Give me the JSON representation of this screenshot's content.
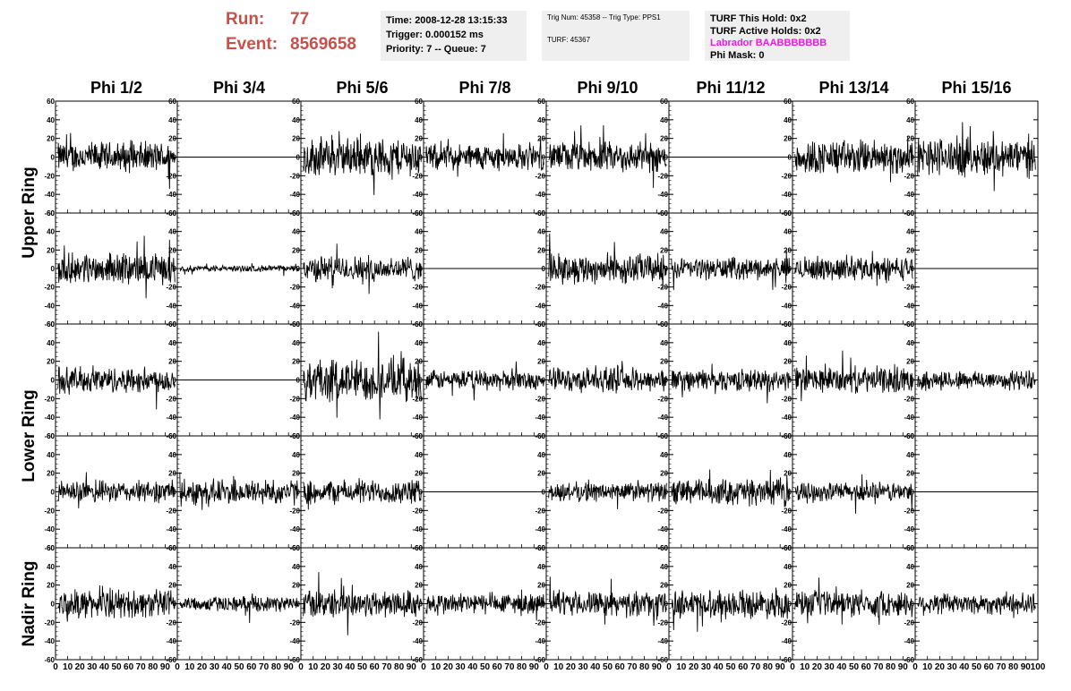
{
  "header": {
    "run_label": "Run:",
    "run_value": "77",
    "event_label": "Event:",
    "event_value": "8569658",
    "run_color": "#c8504a"
  },
  "info_box_1": {
    "time": "Time: 2008-12-28 13:15:33",
    "trigger": "Trigger: 0.000152 ms",
    "priority": "Priority: 7 -- Queue: 7"
  },
  "info_box_2": {
    "trig": "Trig Num: 45358 -- Trig Type: PPS1",
    "turf": "TURF: 45367"
  },
  "info_box_3": {
    "this_hold": "TURF This Hold: 0x2",
    "active_holds": "TURF Active Holds: 0x2",
    "labrador": "Labrador BAABBBBBBB",
    "labrador_color": "#e020e0",
    "phi_mask": "Phi Mask: 0"
  },
  "chart_data": {
    "type": "line",
    "columns": [
      "Phi 1/2",
      "Phi 3/4",
      "Phi 5/6",
      "Phi 7/8",
      "Phi 9/10",
      "Phi 11/12",
      "Phi 13/14",
      "Phi 15/16"
    ],
    "rows": [
      "Upper Ring",
      "Upper Ring",
      "Lower Ring",
      "Lower Ring",
      "Nadir Ring"
    ],
    "row_labels": [
      "Upper Ring",
      "Lower Ring",
      "Nadir Ring"
    ],
    "xlim": [
      0,
      100
    ],
    "ylim": [
      -60,
      60
    ],
    "yticks": [
      -60,
      -40,
      -20,
      0,
      20,
      40,
      60
    ],
    "xtick_labels": [
      "0",
      "10",
      "20",
      "30",
      "40",
      "50",
      "60",
      "70",
      "80",
      "90",
      "100"
    ],
    "flat_panels": [
      [
        0,
        1
      ],
      [
        1,
        7
      ],
      [
        2,
        1
      ],
      [
        3,
        3
      ],
      [
        3,
        7
      ]
    ],
    "amplitudes": [
      [
        14,
        0,
        18,
        12,
        14,
        0,
        16,
        18
      ],
      [
        14,
        3,
        12,
        0,
        14,
        10,
        11,
        0
      ],
      [
        12,
        0,
        20,
        9,
        11,
        10,
        12,
        9
      ],
      [
        10,
        12,
        11,
        0,
        9,
        12,
        9,
        0
      ],
      [
        13,
        7,
        13,
        10,
        11,
        13,
        12,
        10
      ]
    ]
  }
}
